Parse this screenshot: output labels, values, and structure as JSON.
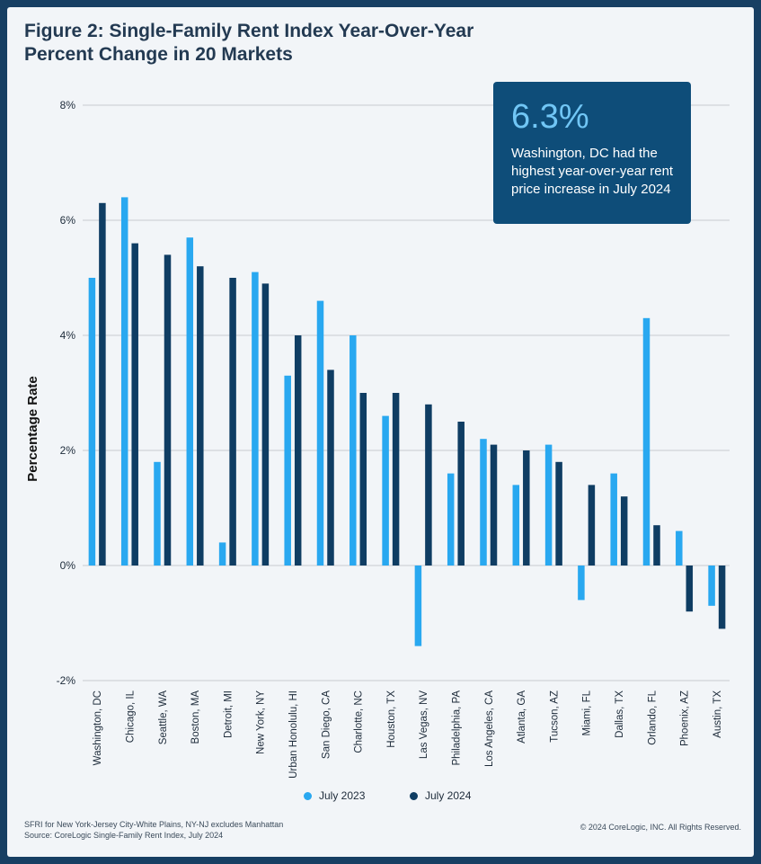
{
  "header": {
    "title_line1": "Figure 2: Single-Family Rent Index Year-Over-Year",
    "title_line2": "Percent Change in 20 Markets"
  },
  "callout": {
    "value": "6.3%",
    "text": "Washington, DC had the highest year-over-year rent price increase in July 2024"
  },
  "footer": {
    "note1": "SFRI for New York-Jersey City-White Plains, NY-NJ excludes Manhattan",
    "note2": "Source: CoreLogic Single-Family Rent Index, July 2024",
    "copyright": "© 2024 CoreLogic, INC. All Rights Reserved."
  },
  "colors": {
    "july2023": "#29a8f0",
    "july2024": "#0f3d63",
    "grid": "#c8ccd1"
  },
  "chart_data": {
    "type": "bar",
    "title": "Figure 2: Single-Family Rent Index Year-Over-Year Percent Change in 20 Markets",
    "xlabel": "",
    "ylabel": "Percentage Rate",
    "ylim": [
      -2,
      8
    ],
    "yticks": [
      8,
      6,
      4,
      2,
      0,
      -2
    ],
    "ytick_labels": [
      "8%",
      "6%",
      "4%",
      "2%",
      "0%",
      "-2%"
    ],
    "grid": true,
    "legend": "bottom-center",
    "categories": [
      "Washington, DC",
      "Chicago, IL",
      "Seattle, WA",
      "Boston, MA",
      "Detroit, MI",
      "New York, NY",
      "Urban Honolulu, HI",
      "San Diego, CA",
      "Charlotte, NC",
      "Houston, TX",
      "Las Vegas, NV",
      "Philadelphia, PA",
      "Los Angeles, CA",
      "Atlanta, GA",
      "Tucson, AZ",
      "Miami, FL",
      "Dallas, TX",
      "Orlando, FL",
      "Phoenix, AZ",
      "Austin, TX"
    ],
    "series": [
      {
        "name": "July 2023",
        "values": [
          5.0,
          6.4,
          1.8,
          5.7,
          0.4,
          5.1,
          3.3,
          4.6,
          4.0,
          2.6,
          -1.4,
          1.6,
          2.2,
          1.4,
          2.1,
          -0.6,
          1.6,
          4.3,
          0.6,
          -0.7
        ]
      },
      {
        "name": "July 2024",
        "values": [
          6.3,
          5.6,
          5.4,
          5.2,
          5.0,
          4.9,
          4.0,
          3.4,
          3.0,
          3.0,
          2.8,
          2.5,
          2.1,
          2.0,
          1.8,
          1.4,
          1.2,
          0.7,
          -0.8,
          -1.1
        ]
      }
    ]
  }
}
